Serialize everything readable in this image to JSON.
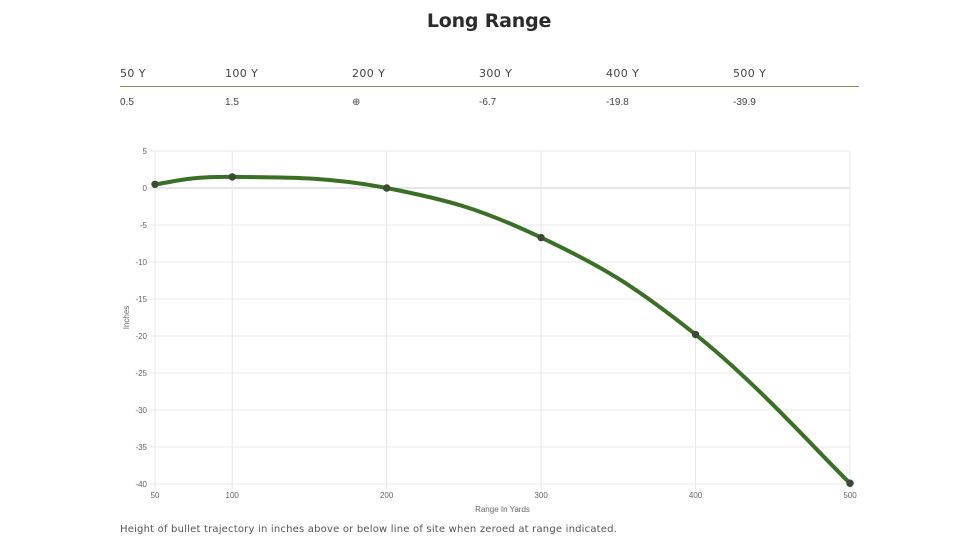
{
  "page": {
    "title": "Long Range",
    "caption": "Height of bullet trajectory in inches above or below line of site when zeroed at range indicated."
  },
  "table": {
    "headers": [
      "50 Y",
      "100 Y",
      "200 Y",
      "300 Y",
      "400 Y",
      "500 Y"
    ],
    "values": [
      "0.5",
      "1.5",
      "⊕",
      "-6.7",
      "-19.8",
      "-39.9"
    ]
  },
  "colors": {
    "line": "#3a7025",
    "point": "#3a4a33",
    "grid": "#e8e8e8",
    "zero_line": "#cccccc",
    "table_rule": "#8a8a5c"
  },
  "chart_data": {
    "type": "line",
    "x": [
      50,
      100,
      200,
      300,
      400,
      500
    ],
    "series": [
      {
        "values": [
          0.5,
          1.5,
          0,
          -6.7,
          -19.8,
          -39.9
        ]
      }
    ],
    "xlabel": "Range In Yards",
    "ylabel": "Inches",
    "xticks": [
      50,
      100,
      200,
      300,
      400,
      500
    ],
    "yticks": [
      5,
      0,
      -5,
      -10,
      -15,
      -20,
      -25,
      -30,
      -35,
      -40
    ],
    "xlim": [
      50,
      500
    ],
    "ylim": [
      -40,
      5
    ],
    "grid": true
  }
}
